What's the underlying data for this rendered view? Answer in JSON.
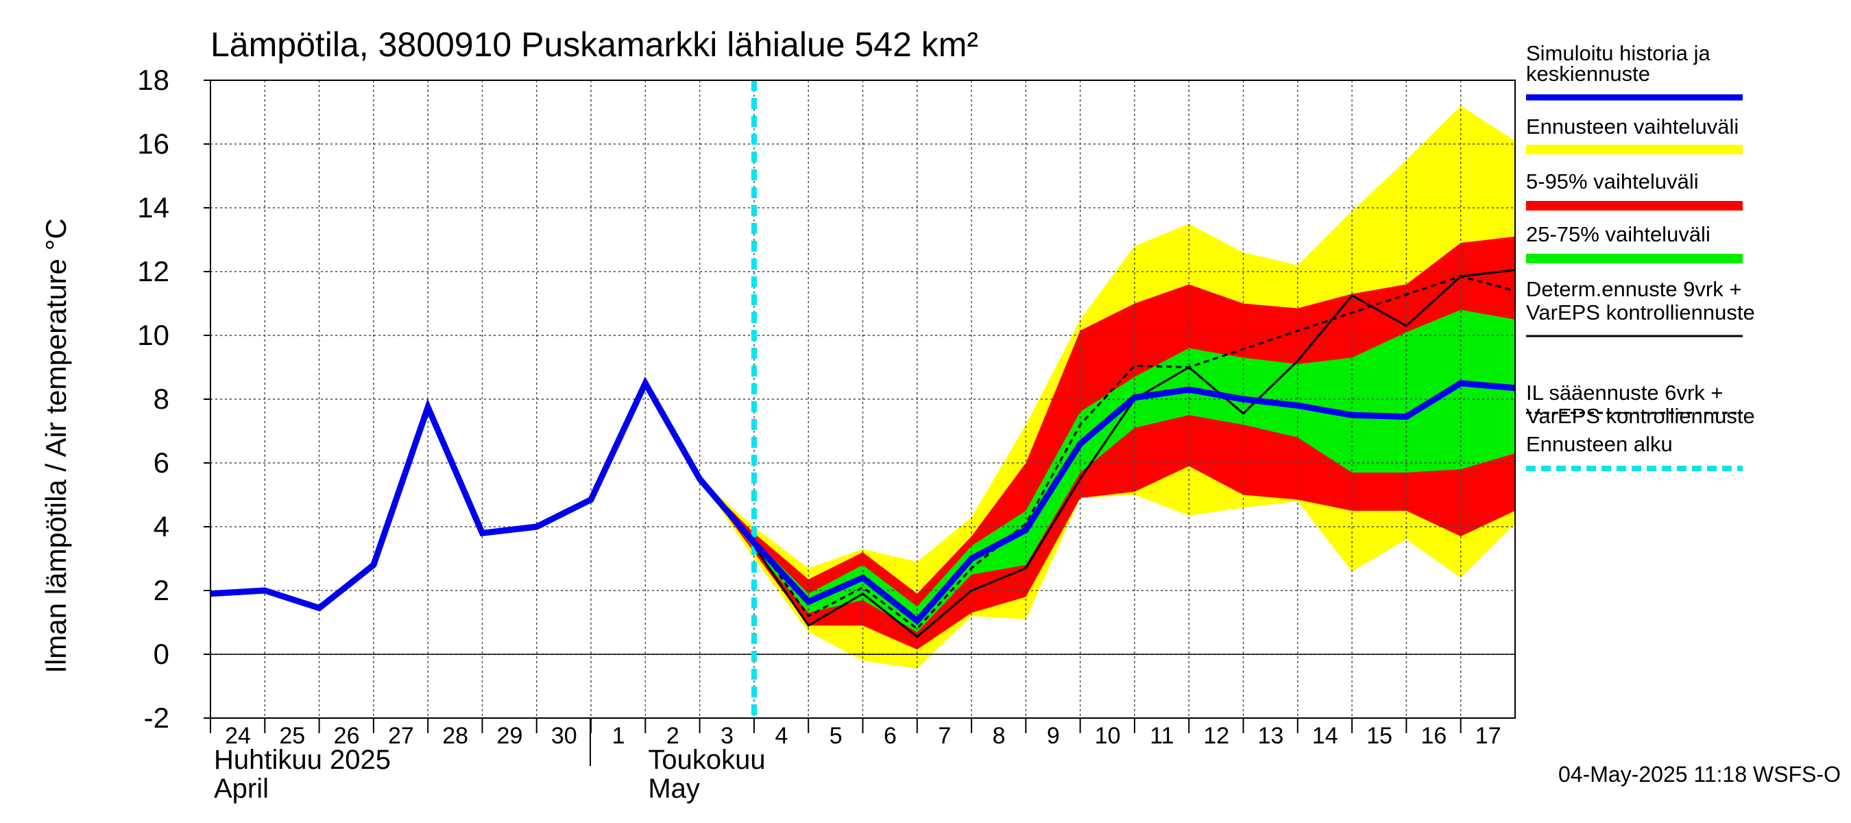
{
  "chart_data": {
    "type": "area",
    "title": "Lämpötila, 3800910 Puskamarkki lähialue 542 km²",
    "ylabel": "Ilman lämpötila / Air temperature    °C",
    "ylim": [
      -2,
      18
    ],
    "yticks": [
      "-2",
      "0",
      "2",
      "4",
      "6",
      "8",
      "10",
      "12",
      "14",
      "16",
      "18"
    ],
    "grid": true,
    "legend_position": "right",
    "x_day_labels": [
      "24",
      "25",
      "26",
      "27",
      "28",
      "29",
      "30",
      "1",
      "2",
      "3",
      "4",
      "5",
      "6",
      "7",
      "8",
      "9",
      "10",
      "11",
      "12",
      "13",
      "14",
      "15",
      "16",
      "17"
    ],
    "month_labels": [
      {
        "line1": "Huhtikuu  2025",
        "line2": "April"
      },
      {
        "line1": "Toukokuu",
        "line2": "May"
      }
    ],
    "forecast_start_x": 10.0,
    "series": [
      {
        "name": "Simuloitu historia ja keskiennuste",
        "color": "#0000ee",
        "x": [
          0,
          1,
          2,
          3,
          4,
          5,
          6,
          7,
          8,
          9,
          10,
          11,
          12,
          13,
          14,
          15,
          16,
          17,
          18,
          19,
          20,
          21,
          22,
          23,
          24
        ],
        "y": [
          1.9,
          2.0,
          1.45,
          2.8,
          7.75,
          3.8,
          4.0,
          4.85,
          8.5,
          5.5,
          3.5,
          1.65,
          2.4,
          1.05,
          3.0,
          3.9,
          6.6,
          8.05,
          8.3,
          8.0,
          7.8,
          7.5,
          7.45,
          8.5,
          8.35
        ]
      },
      {
        "name": "Ennusteen vaihteluväli",
        "color": "#ffff00",
        "x": [
          9,
          10,
          11,
          12,
          13,
          14,
          15,
          16,
          17,
          18,
          19,
          20,
          21,
          22,
          23,
          24
        ],
        "upper": [
          5.5,
          4.0,
          2.7,
          3.3,
          2.9,
          4.3,
          7.2,
          10.5,
          12.8,
          13.5,
          12.6,
          12.2,
          13.9,
          15.5,
          17.2,
          16.1
        ],
        "lower": [
          5.5,
          3.0,
          0.7,
          -0.2,
          -0.45,
          1.2,
          1.1,
          4.9,
          5.0,
          4.35,
          4.6,
          4.8,
          2.6,
          3.6,
          2.4,
          4.1
        ]
      },
      {
        "name": "5-95% vaihteluväli",
        "color": "#ff0000",
        "x": [
          9,
          10,
          11,
          12,
          13,
          14,
          15,
          16,
          17,
          18,
          19,
          20,
          21,
          22,
          23,
          24
        ],
        "upper": [
          5.5,
          3.8,
          2.35,
          3.2,
          1.9,
          3.7,
          6.0,
          10.15,
          11.0,
          11.6,
          11.0,
          10.85,
          11.3,
          11.6,
          12.9,
          13.1
        ],
        "lower": [
          5.5,
          3.2,
          0.9,
          0.9,
          0.15,
          1.3,
          1.8,
          4.9,
          5.1,
          5.9,
          5.0,
          4.85,
          4.5,
          4.5,
          3.7,
          4.5
        ]
      },
      {
        "name": "25-75% vaihteluväli",
        "color": "#00ee00",
        "x": [
          9,
          10,
          11,
          12,
          13,
          14,
          15,
          16,
          17,
          18,
          19,
          20,
          21,
          22,
          23,
          24
        ],
        "upper": [
          5.5,
          3.6,
          1.9,
          2.8,
          1.5,
          3.4,
          4.5,
          7.6,
          8.7,
          9.6,
          9.3,
          9.1,
          9.3,
          10.1,
          10.8,
          10.5
        ],
        "lower": [
          5.5,
          3.3,
          1.3,
          1.7,
          0.7,
          2.5,
          2.8,
          5.7,
          7.1,
          7.5,
          7.2,
          6.8,
          5.7,
          5.7,
          5.8,
          6.3
        ]
      },
      {
        "name": "Determ.ennuste 9vrk + VarEPS kontrolliennuste",
        "color": "#000000",
        "x": [
          8,
          9,
          10,
          11,
          12,
          13,
          14,
          15,
          16,
          17,
          18,
          19,
          20,
          21,
          22,
          23,
          24
        ],
        "y": [
          8.45,
          5.5,
          3.4,
          0.9,
          1.9,
          0.55,
          2.0,
          2.7,
          5.5,
          8.0,
          9.0,
          7.55,
          9.2,
          11.25,
          10.3,
          11.85,
          12.05
        ]
      },
      {
        "name": "IL sääennuste 6vrk  +\n  VarEPS kontrolliennuste",
        "color": "#000000",
        "x": [
          9,
          10,
          11,
          12,
          13,
          14,
          15,
          16,
          17,
          18,
          23,
          24
        ],
        "y": [
          5.5,
          3.6,
          1.2,
          2.1,
          0.8,
          2.7,
          4.1,
          7.2,
          9.05,
          9.0,
          11.85,
          11.4
        ]
      }
    ]
  },
  "legend": [
    {
      "text": "Simuloitu historia ja\nkeskiennuste",
      "swatch": "solid-blue"
    },
    {
      "text": "Ennusteen vaihteluväli",
      "swatch": "solid-yellow"
    },
    {
      "text": "5-95% vaihteluväli",
      "swatch": "solid-red"
    },
    {
      "text": "25-75% vaihteluväli",
      "swatch": "solid-green"
    },
    {
      "text": "Determ.ennuste 9vrk +\nVarEPS kontrolliennuste",
      "swatch": "thin-black"
    },
    {
      "text": "IL sääennuste 6vrk  +\n  VarEPS kontrolliennuste",
      "swatch": "dashed-black"
    },
    {
      "text": "Ennusteen alku",
      "swatch": "dashed-cyan"
    }
  ],
  "footer": "04-May-2025 11:18 WSFS-O",
  "colors": {
    "history": "#0000ee",
    "range_all": "#ffff00",
    "range_5_95": "#ff0000",
    "range_25_75": "#00ee00",
    "deterministic": "#000000",
    "forecast_start": "#00e5ee"
  }
}
